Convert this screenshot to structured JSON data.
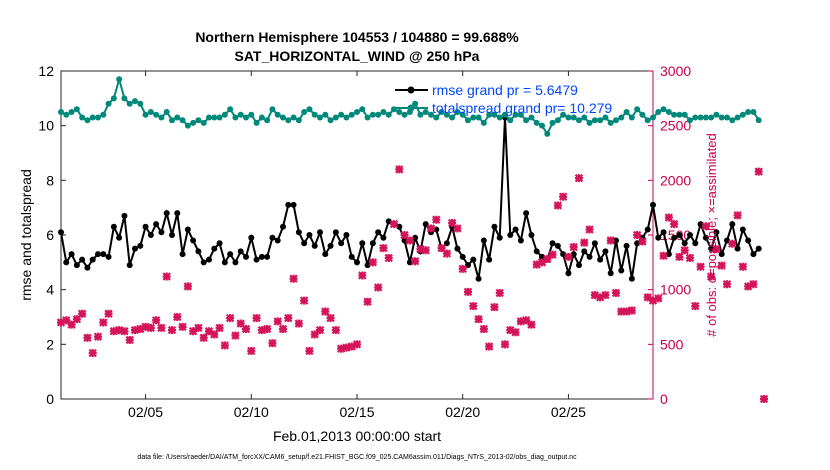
{
  "chart_data": {
    "type": "line",
    "title": "Northern Hemisphere 104553 / 104880 = 99.688%",
    "subtitle": "SAT_HORIZONTAL_WIND @ 250 hPa",
    "xlabel": "Feb.01,2013 00:00:00 start",
    "ylabel": "rmse and totalspread",
    "ylabel_right": "# of obs: o=possible; ×=assimilated",
    "footer": "data file: /Users/raeder/DAI/ATM_forcXX/CAM6_setup/f.e21.FHIST_BGC.f09_025.CAM6assim.011/Diags_NTrS_2013-02/obs_diag_output.nc",
    "xlim": [
      1,
      29
    ],
    "ylim": [
      0,
      12
    ],
    "ylim_right": [
      0,
      3000
    ],
    "x_tick_values": [
      5,
      10,
      15,
      20,
      25
    ],
    "x_tick_labels": [
      "02/05",
      "02/10",
      "02/15",
      "02/20",
      "02/25"
    ],
    "y_ticks": [
      0,
      2,
      4,
      6,
      8,
      10,
      12
    ],
    "y_ticks_right": [
      0,
      500,
      1000,
      1500,
      2000,
      2500,
      3000
    ],
    "grid": false,
    "legend_position": "top-right",
    "x_start": 1.0,
    "x_step": 0.25,
    "series": [
      {
        "name": "rmse grand pr = 5.6479",
        "axis": "left",
        "color": "#000000",
        "marker": "circle",
        "values": [
          6.1,
          5.0,
          5.3,
          4.9,
          5.1,
          4.8,
          5.1,
          5.3,
          5.3,
          5.2,
          6.3,
          5.9,
          6.7,
          4.9,
          5.5,
          5.6,
          6.3,
          6.0,
          6.4,
          6.1,
          6.8,
          6.0,
          6.8,
          5.3,
          6.2,
          5.8,
          5.4,
          5.0,
          5.1,
          5.5,
          5.7,
          5.0,
          5.3,
          5.0,
          5.4,
          5.2,
          5.9,
          5.1,
          5.2,
          5.2,
          5.9,
          5.8,
          6.3,
          7.1,
          7.1,
          6.1,
          5.7,
          6.0,
          5.6,
          6.1,
          5.3,
          5.6,
          6.1,
          5.7,
          6.0,
          5.2,
          5.0,
          5.7,
          4.9,
          5.7,
          6.1,
          5.9,
          6.5,
          6.4,
          6.3,
          5.8,
          5.0,
          5.9,
          5.4,
          6.4,
          6.1,
          6.2,
          5.5,
          5.7,
          6.3,
          5.5,
          5.2,
          4.9,
          5.1,
          4.4,
          5.8,
          5.1,
          6.3,
          5.9,
          10.3,
          6.0,
          6.2,
          5.8,
          6.8,
          6.0,
          5.4,
          5.2,
          5.1,
          5.7,
          5.6,
          5.3,
          4.6,
          5.3,
          4.9,
          5.4,
          5.2,
          5.7,
          5.1,
          5.4,
          4.6,
          5.8,
          4.7,
          5.6,
          4.4,
          5.7,
          5.9,
          6.2,
          7.1,
          5.9,
          6.1,
          5.3,
          5.9,
          6.0,
          5.7,
          6.0,
          5.7,
          6.4,
          5.9,
          5.5,
          6.1,
          5.3,
          5.8,
          6.4,
          5.5,
          6.2,
          5.8,
          5.3,
          5.5
        ]
      },
      {
        "name": "totalspread grand pr= 10.279",
        "axis": "left",
        "color": "#00897b",
        "marker": "circle",
        "values": [
          10.5,
          10.4,
          10.5,
          10.6,
          10.3,
          10.2,
          10.3,
          10.3,
          10.4,
          10.8,
          11.0,
          11.7,
          11.0,
          10.8,
          10.9,
          10.8,
          10.4,
          10.5,
          10.4,
          10.3,
          10.5,
          10.2,
          10.3,
          10.2,
          10.0,
          10.1,
          10.2,
          10.1,
          10.3,
          10.3,
          10.3,
          10.4,
          10.6,
          10.3,
          10.4,
          10.3,
          10.4,
          10.1,
          10.3,
          10.2,
          10.6,
          10.4,
          10.3,
          10.2,
          10.3,
          10.2,
          10.5,
          10.6,
          10.4,
          10.3,
          10.4,
          10.2,
          10.3,
          10.4,
          10.3,
          10.4,
          10.5,
          10.6,
          10.3,
          10.4,
          10.4,
          10.5,
          10.4,
          10.6,
          10.5,
          10.4,
          10.5,
          10.8,
          10.4,
          10.5,
          10.4,
          10.3,
          10.5,
          10.4,
          10.3,
          10.5,
          10.4,
          10.2,
          10.3,
          10.3,
          10.1,
          10.4,
          10.4,
          10.3,
          10.4,
          10.2,
          10.4,
          10.4,
          10.2,
          10.3,
          10.1,
          10.0,
          9.7,
          10.1,
          10.2,
          10.4,
          10.3,
          10.3,
          10.2,
          10.3,
          10.1,
          10.2,
          10.2,
          10.3,
          10.1,
          10.2,
          10.3,
          10.5,
          10.3,
          10.6,
          10.4,
          10.2,
          10.3,
          10.5,
          10.6,
          10.5,
          10.4,
          10.4,
          10.4,
          10.2,
          10.3,
          10.3,
          10.3,
          10.3,
          10.4,
          10.3,
          10.3,
          10.2,
          10.3,
          10.4,
          10.5,
          10.5,
          10.2
        ]
      },
      {
        "name": "",
        "axis": "right",
        "color": "#d4145a",
        "marker": "x",
        "values": [
          700,
          720,
          680,
          730,
          780,
          560,
          420,
          570,
          700,
          780,
          620,
          630,
          620,
          540,
          630,
          640,
          660,
          650,
          720,
          650,
          1120,
          630,
          750,
          660,
          1030,
          620,
          650,
          560,
          620,
          590,
          650,
          490,
          740,
          580,
          690,
          640,
          440,
          740,
          630,
          640,
          510,
          710,
          640,
          740,
          1100,
          690,
          900,
          440,
          590,
          630,
          800,
          740,
          630,
          460,
          470,
          480,
          500,
          1130,
          890,
          1250,
          1020,
          1380,
          1290,
          1600,
          2100,
          1500,
          1450,
          1260,
          1370,
          1360,
          1560,
          1640,
          1380,
          1330,
          1610,
          1560,
          1190,
          980,
          850,
          730,
          640,
          480,
          840,
          970,
          500,
          630,
          610,
          710,
          720,
          680,
          1230,
          1250,
          1280,
          1320,
          1770,
          1850,
          1300,
          1390,
          2020,
          1430,
          1550,
          950,
          930,
          950,
          1450,
          970,
          800,
          800,
          810,
          1500,
          1440,
          930,
          900,
          920,
          1310,
          1660,
          1600,
          1300,
          1360,
          1290,
          850,
          1210,
          1580,
          1120,
          1370,
          1220,
          1050,
          1420,
          1680,
          1210,
          1030,
          1050,
          2080,
          0
        ]
      }
    ]
  }
}
